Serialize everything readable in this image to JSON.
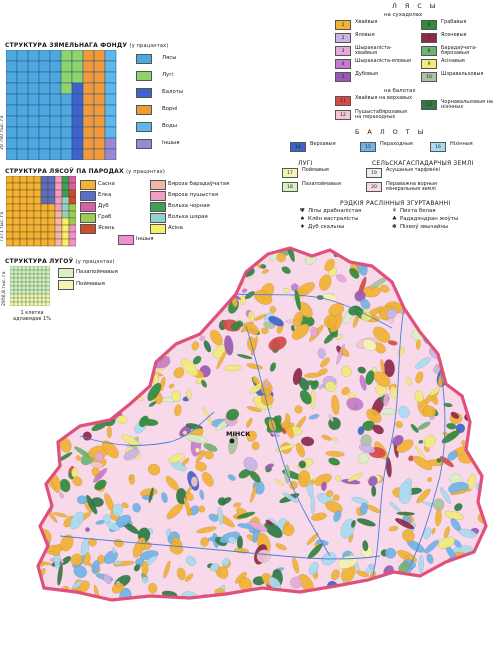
{
  "land_fund": {
    "title": "СТРУКТУРА ЗЯМЕЛЬНАГА ФОНДУ",
    "unit": "(у працэнтах)",
    "side_label": "20 760 тыс. га",
    "legend": [
      {
        "label": "Лясы",
        "color": "#4ea8de"
      },
      {
        "label": "Лугі",
        "color": "#8fd36b"
      },
      {
        "label": "Балоты",
        "color": "#3f63c9"
      },
      {
        "label": "Ворні",
        "color": "#f29a3a"
      },
      {
        "label": "Воды",
        "color": "#5db8e8"
      },
      {
        "label": "Іншыя",
        "color": "#9a88d4"
      }
    ]
  },
  "forest_species": {
    "title": "СТРУКТУРА ЛЯСОЎ ПА ПАРОДАХ",
    "unit": "(у працэнтах)",
    "side_label": "7371 тыс. га",
    "legend": [
      {
        "label": "Сасна",
        "color": "#f2b233"
      },
      {
        "label": "Елка",
        "color": "#5a6fc4"
      },
      {
        "label": "Дуб",
        "color": "#d75fa6"
      },
      {
        "label": "Граб",
        "color": "#9acd55"
      },
      {
        "label": "Ясень",
        "color": "#c94d2b"
      },
      {
        "label": "Бяроза барадаўчатая",
        "color": "#f4b6a6"
      },
      {
        "label": "Бяроза пушыстая",
        "color": "#f29ec3"
      },
      {
        "label": "Вольха чорная",
        "color": "#3e9f55"
      },
      {
        "label": "Вольха шэрая",
        "color": "#8fd3c9"
      },
      {
        "label": "Асіна",
        "color": "#f7f06a"
      },
      {
        "label": "Іншыя",
        "color": "#f28fd0"
      }
    ]
  },
  "meadows": {
    "title": "СТРУКТУРА ЛУГОЎ",
    "unit": "(у працэнтах)",
    "side_label": "2956,8 тыс. га",
    "cell_note": "1 клетка адпавядае 1%",
    "legend": [
      {
        "label": "Пазапоймавыя",
        "color": "#d9f0c4"
      },
      {
        "label": "Поймавыя",
        "color": "#f6f3b6"
      }
    ]
  },
  "legend": {
    "forests_title": "Л Я С Ы",
    "dry_land": "на сухадолах",
    "dry_items": [
      {
        "num": "1",
        "label": "Хваёвыя",
        "color": "#f2b233"
      },
      {
        "num": "2",
        "label": "Яловыя",
        "color": "#c9b4e6"
      },
      {
        "num": "3",
        "label": "Шыракаліста-хваёвыя",
        "color": "#e6a9d6"
      },
      {
        "num": "4",
        "label": "Шыракаліста-яловыя",
        "color": "#c77bcf"
      },
      {
        "num": "5",
        "label": "Дубовыя",
        "color": "#9b59b6"
      },
      {
        "num": "6",
        "label": "Грабавыя",
        "color": "#2f8a3a"
      },
      {
        "num": "7",
        "label": "Ясеневыя",
        "color": "#8e2a4a"
      },
      {
        "num": "8",
        "label": "Барадаўчата-бярозавыя",
        "color": "#6fb36f"
      },
      {
        "num": "9",
        "label": "Асінавыя",
        "color": "#f0ec7a"
      },
      {
        "num": "10",
        "label": "Шэравальховыя",
        "color": "#a9c4a0"
      }
    ],
    "bog_title": "на балотах",
    "bog_items": [
      {
        "num": "11",
        "label": "Хваёвыя на верхавых",
        "color": "#d64a4a"
      },
      {
        "num": "12",
        "label": "Пушыстабярозавыя на пераходных",
        "color": "#f3c6d0"
      },
      {
        "num": "13",
        "label": "Чорнавальховыя на нізінных",
        "color": "#2f7a45"
      }
    ],
    "bogs_title": "Б А Л О Т Ы",
    "bog_types": [
      {
        "num": "14",
        "label": "Верхавыя",
        "color": "#3f63c9"
      },
      {
        "num": "15",
        "label": "Пераходныя",
        "color": "#6fb4e6"
      },
      {
        "num": "16",
        "label": "Нізінныя",
        "color": "#a9dcf2"
      }
    ],
    "meadows_title": "ЛУГІ",
    "meadow_types": [
      {
        "num": "17",
        "label": "Поймавыя",
        "color": "#f6f3b6"
      },
      {
        "num": "18",
        "label": "Пазапоймавыя",
        "color": "#d9f0c4"
      }
    ],
    "agri_title": "СЕЛЬСКАГАСПАДАРЧЫЯ ЗЕМЛІ",
    "agri_types": [
      {
        "num": "19",
        "label": "Асушаныя тарфянікі",
        "color": "#f0f0ea"
      },
      {
        "num": "20",
        "label": "Пераважна ворныя мінеральныя землі",
        "color": "#f7d9ea"
      }
    ],
    "rare_title": "РЭДКІЯ РАСЛІННЫЯ ЗГУРТАВАННІ",
    "rare_items": [
      {
        "symbol": "Ψ",
        "label": "Ліпы драбналістая"
      },
      {
        "symbol": "⚘",
        "label": "Пихта белая"
      },
      {
        "symbol": "♠",
        "label": "Клён вастралісты"
      },
      {
        "symbol": "♣",
        "label": "Рададэндран жоўты"
      },
      {
        "symbol": "♦",
        "label": "Дуб скальны"
      },
      {
        "symbol": "✽",
        "label": "Піхвоў звычайны"
      }
    ]
  },
  "map": {
    "city_label": "МІНСК",
    "colors": {
      "outline": "#e0507a",
      "base": "#f7d9ea",
      "river": "#4a7fd4"
    }
  }
}
